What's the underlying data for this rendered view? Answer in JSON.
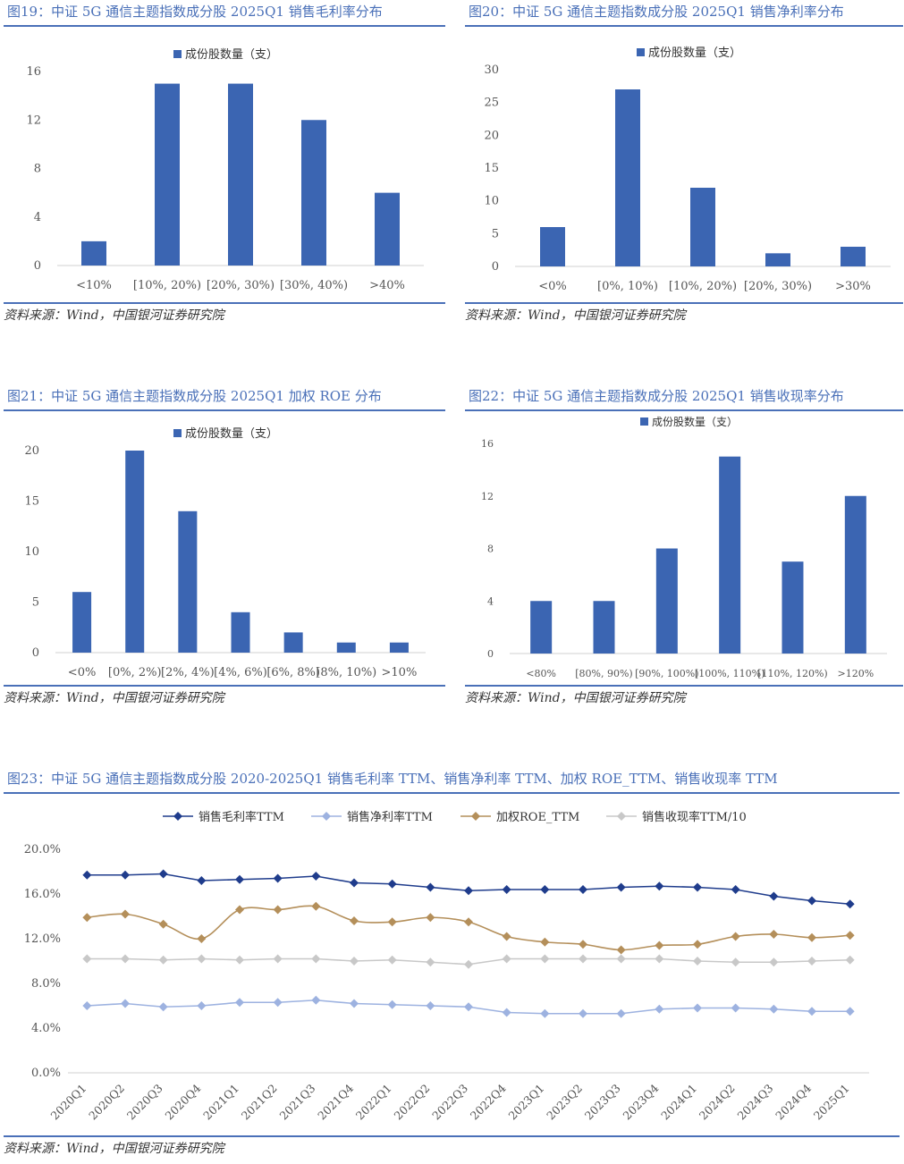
{
  "colors": {
    "bar": "#3b65b2",
    "title": "#4a70b8",
    "s1": "#1f3c8c",
    "s2": "#9db2e0",
    "s3": "#b48f5a",
    "s4": "#c8c8c8"
  },
  "source": "资料来源：Wind，中国银河证券研究院",
  "chart_data": [
    {
      "id": "fig19",
      "type": "bar",
      "title": "图19：中证 5G 通信主题指数成分股 2025Q1 销售毛利率分布",
      "legend": "成份股数量（支）",
      "categories": [
        "<10%",
        "[10%, 20%)",
        "[20%, 30%)",
        "[30%, 40%)",
        ">40%"
      ],
      "values": [
        2,
        15,
        15,
        12,
        6
      ],
      "ylim": [
        0,
        16
      ],
      "yticks": [
        0,
        4,
        8,
        12,
        16
      ]
    },
    {
      "id": "fig20",
      "type": "bar",
      "title": "图20：中证 5G 通信主题指数成分股 2025Q1 销售净利率分布",
      "legend": "成份股数量（支）",
      "categories": [
        "<0%",
        "[0%, 10%)",
        "[10%, 20%)",
        "[20%, 30%)",
        ">30%"
      ],
      "values": [
        6,
        27,
        12,
        2,
        3
      ],
      "ylim": [
        0,
        30
      ],
      "yticks": [
        0,
        5,
        10,
        15,
        20,
        25,
        30
      ]
    },
    {
      "id": "fig21",
      "type": "bar",
      "title": "图21：中证 5G 通信主题指数成分股 2025Q1 加权 ROE 分布",
      "legend": "成份股数量（支）",
      "categories": [
        "<0%",
        "[0%, 2%)",
        "[2%, 4%)",
        "[4%, 6%)",
        "[6%, 8%)",
        "[8%, 10%)",
        ">10%"
      ],
      "values": [
        6,
        20,
        14,
        4,
        2,
        1,
        1
      ],
      "ylim": [
        0,
        20
      ],
      "yticks": [
        0,
        5,
        10,
        15,
        20
      ]
    },
    {
      "id": "fig22",
      "type": "bar",
      "title": "图22：中证 5G 通信主题指数成分股 2025Q1 销售收现率分布",
      "legend": "成份股数量（支）",
      "categories": [
        "<80%",
        "[80%, 90%)",
        "[90%, 100%)",
        "[100%, 110%)",
        "[110%, 120%)",
        ">120%"
      ],
      "values": [
        4,
        4,
        8,
        15,
        7,
        12
      ],
      "ylim": [
        0,
        16
      ],
      "yticks": [
        0,
        4,
        8,
        12,
        16
      ]
    },
    {
      "id": "fig23",
      "type": "line",
      "title": "图23：中证 5G 通信主题指数成分股 2020-2025Q1 销售毛利率 TTM、销售净利率 TTM、加权 ROE_TTM、销售收现率 TTM",
      "categories": [
        "2020Q1",
        "2020Q2",
        "2020Q3",
        "2020Q4",
        "2021Q1",
        "2021Q2",
        "2021Q3",
        "2021Q4",
        "2022Q1",
        "2022Q2",
        "2022Q3",
        "2022Q4",
        "2023Q1",
        "2023Q2",
        "2023Q3",
        "2023Q4",
        "2024Q1",
        "2024Q2",
        "2024Q3",
        "2024Q4",
        "2025Q1"
      ],
      "ylim": [
        0,
        20
      ],
      "yticks": [
        "0.0%",
        "4.0%",
        "8.0%",
        "12.0%",
        "16.0%",
        "20.0%"
      ],
      "series": [
        {
          "name": "销售毛利率TTM",
          "values": [
            17.7,
            17.7,
            17.8,
            17.2,
            17.3,
            17.4,
            17.6,
            17.0,
            16.9,
            16.6,
            16.3,
            16.4,
            16.4,
            16.4,
            16.6,
            16.7,
            16.6,
            16.4,
            15.8,
            15.4,
            15.1
          ]
        },
        {
          "name": "销售净利率TTM",
          "values": [
            6.0,
            6.2,
            5.9,
            6.0,
            6.3,
            6.3,
            6.5,
            6.2,
            6.1,
            6.0,
            5.9,
            5.4,
            5.3,
            5.3,
            5.3,
            5.7,
            5.8,
            5.8,
            5.7,
            5.5,
            5.5
          ]
        },
        {
          "name": "加权ROE_TTM",
          "values": [
            13.9,
            14.2,
            13.3,
            12.0,
            14.6,
            14.6,
            14.9,
            13.6,
            13.5,
            13.9,
            13.5,
            12.2,
            11.7,
            11.5,
            11.0,
            11.4,
            11.5,
            12.2,
            12.4,
            12.1,
            12.3
          ]
        },
        {
          "name": "销售收现率TTM/10",
          "values": [
            10.2,
            10.2,
            10.1,
            10.2,
            10.1,
            10.2,
            10.2,
            10.0,
            10.1,
            9.9,
            9.7,
            10.2,
            10.2,
            10.2,
            10.2,
            10.2,
            10.0,
            9.9,
            9.9,
            10.0,
            10.1
          ]
        }
      ]
    }
  ]
}
